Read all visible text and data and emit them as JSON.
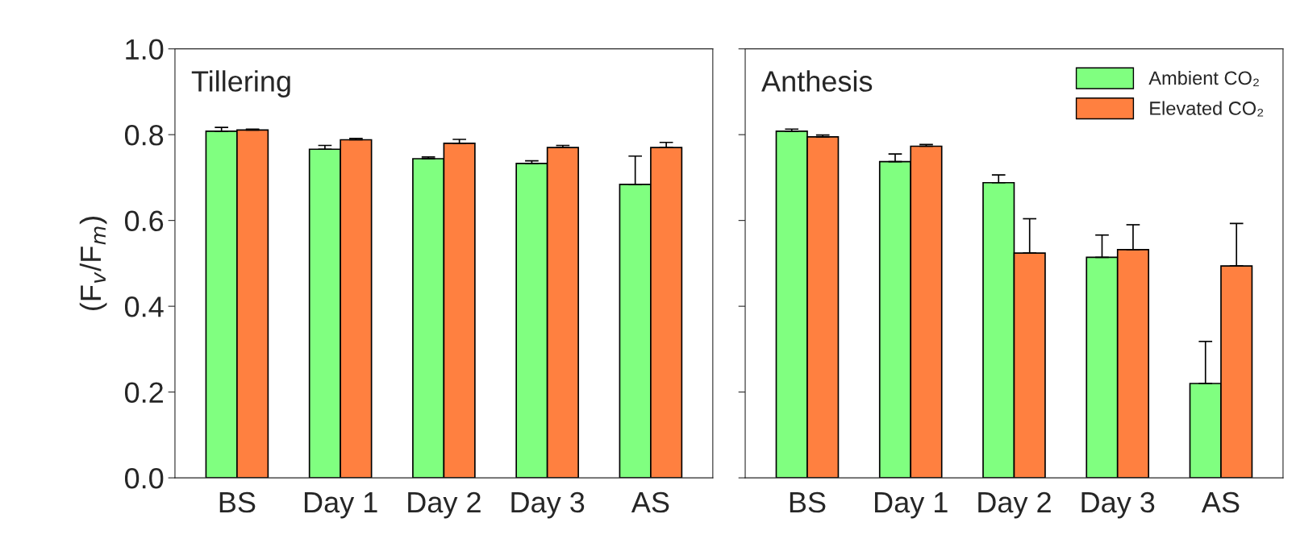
{
  "chart_data": [
    {
      "type": "bar",
      "title": "Tillering",
      "ylabel": "(F$_{v}$/F$_{m}$)",
      "categories": [
        "BS",
        "Day 1",
        "Day 2",
        "Day 3",
        "AS"
      ],
      "ylim": [
        0,
        1.0
      ],
      "yticks": [
        {
          "value": 0.0,
          "label": "0.0"
        },
        {
          "value": 0.2,
          "label": "0.2"
        },
        {
          "value": 0.4,
          "label": "0.4"
        },
        {
          "value": 0.6,
          "label": "0.6"
        },
        {
          "value": 0.8,
          "label": "0.8"
        },
        {
          "value": 1.0,
          "label": "1.0"
        }
      ],
      "grid": false,
      "series": [
        {
          "color": "#80ff80",
          "values": [
            0.808,
            0.766,
            0.744,
            0.733,
            0.684
          ],
          "errors": [
            [
              0.808,
              0.817
            ],
            [
              0.766,
              0.775
            ],
            [
              0.744,
              0.748
            ],
            [
              0.733,
              0.739
            ],
            [
              0.684,
              0.75
            ]
          ]
        },
        {
          "color": "#ff8040",
          "values": [
            0.811,
            0.788,
            0.78,
            0.77,
            0.77
          ],
          "errors": [
            [
              0.811,
              0.813
            ],
            [
              0.788,
              0.791
            ],
            [
              0.78,
              0.789
            ],
            [
              0.77,
              0.775
            ],
            [
              0.77,
              0.782
            ]
          ]
        }
      ]
    },
    {
      "type": "bar",
      "title": "Anthesis",
      "categories": [
        "BS",
        "Day 1",
        "Day 2",
        "Day 3",
        "AS"
      ],
      "ylim": [
        0,
        1.0
      ],
      "yticks": [
        {
          "value": 0.0,
          "label": null
        },
        {
          "value": 0.2,
          "label": null
        },
        {
          "value": 0.4,
          "label": null
        },
        {
          "value": 0.6,
          "label": null
        },
        {
          "value": 0.8,
          "label": null
        },
        {
          "value": 1.0,
          "label": null
        }
      ],
      "tick_labels": "x",
      "grid": false,
      "legend": "top right",
      "series": [
        {
          "name": "Ambient CO₂",
          "color": "#80ff80",
          "values": [
            0.808,
            0.737,
            0.688,
            0.514,
            0.22
          ],
          "errors": [
            [
              0.808,
              0.813
            ],
            [
              0.737,
              0.755
            ],
            [
              0.688,
              0.706
            ],
            [
              0.514,
              0.566
            ],
            [
              0.22,
              0.318
            ]
          ]
        },
        {
          "name": "Elevated CO₂",
          "color": "#ff8040",
          "values": [
            0.795,
            0.773,
            0.524,
            0.532,
            0.494
          ],
          "errors": [
            [
              0.795,
              0.799
            ],
            [
              0.773,
              0.777
            ],
            [
              0.524,
              0.604
            ],
            [
              0.532,
              0.59
            ],
            [
              0.494,
              0.593
            ]
          ]
        }
      ]
    }
  ]
}
